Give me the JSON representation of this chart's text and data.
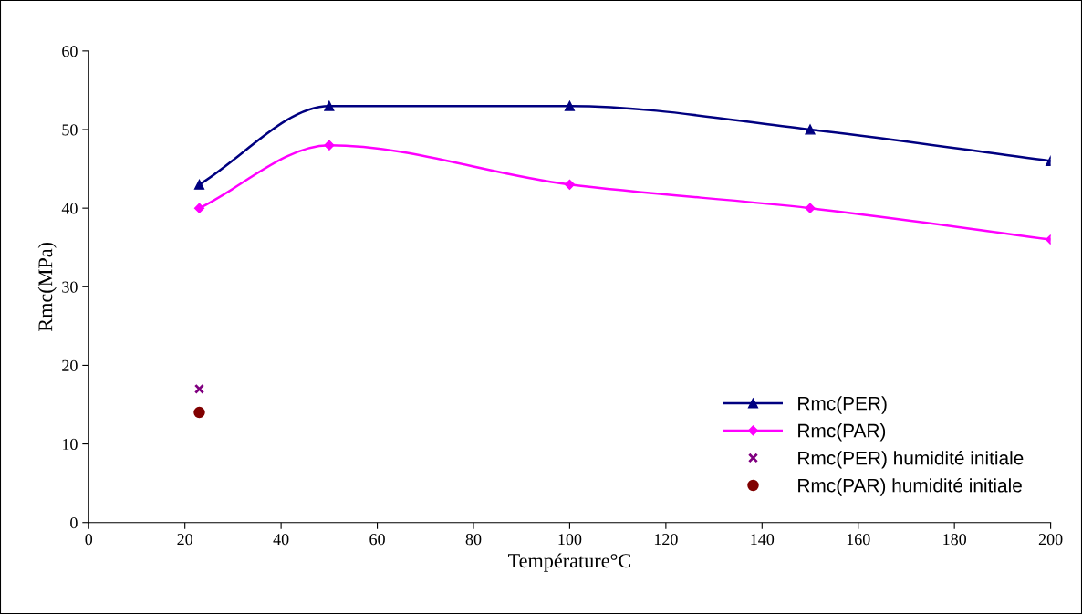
{
  "chart_data": {
    "type": "line",
    "xlabel": "Température°C",
    "ylabel": "Rmc(MPa)",
    "xlim": [
      0,
      200
    ],
    "xticks": [
      0,
      20,
      40,
      60,
      80,
      100,
      120,
      140,
      160,
      180,
      200
    ],
    "ylim": [
      0,
      60
    ],
    "yticks": [
      0,
      10,
      20,
      30,
      40,
      50,
      60
    ],
    "grid": false,
    "legend": "bottom right",
    "series": [
      {
        "name": "Rmc(PER)",
        "color": "#000080",
        "marker": "triangle",
        "x": [
          23,
          50,
          100,
          150,
          200
        ],
        "values": [
          43,
          53,
          53,
          50,
          46
        ]
      },
      {
        "name": "Rmc(PAR)",
        "color": "#ff00ff",
        "marker": "diamond",
        "x": [
          23,
          50,
          100,
          150,
          200
        ],
        "values": [
          40,
          48,
          43,
          40,
          36
        ]
      },
      {
        "name": "Rmc(PER) humidité initiale",
        "type": "scatter",
        "color": "#800080",
        "marker": "cross",
        "x": [
          23
        ],
        "values": [
          17
        ]
      },
      {
        "name": "Rmc(PAR) humidité initiale",
        "type": "scatter",
        "color": "#800000",
        "marker": "circle",
        "x": [
          23
        ],
        "values": [
          14
        ]
      }
    ]
  }
}
